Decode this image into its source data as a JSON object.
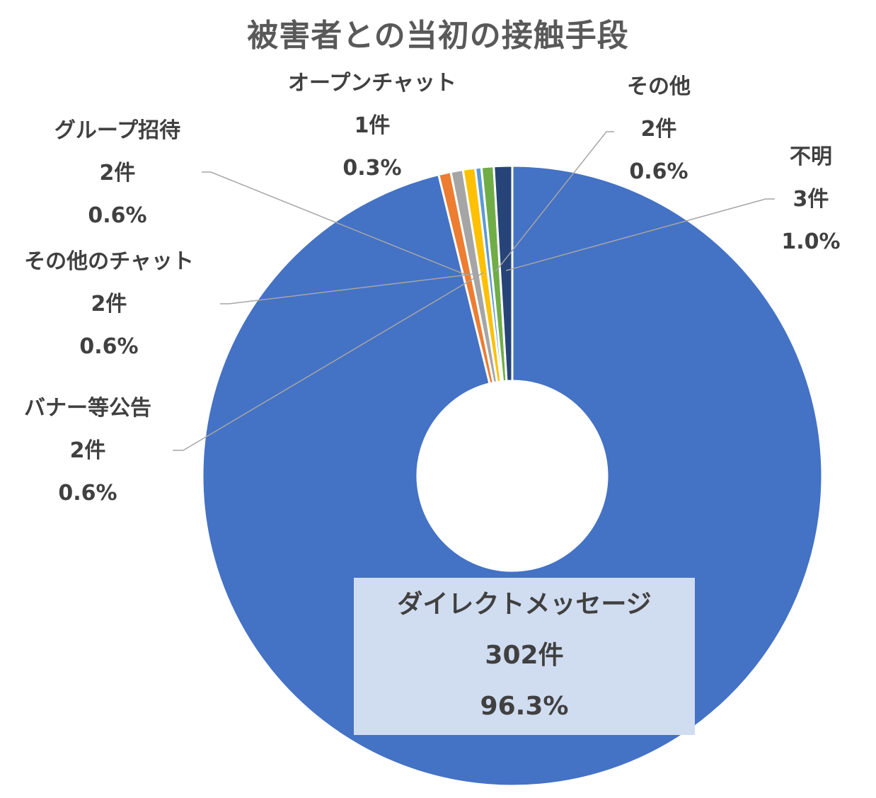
{
  "chart_data": {
    "type": "pie",
    "variant": "doughnut",
    "title": "被害者との当初の接触手段",
    "start": "12 o'clock, clockwise",
    "slices": [
      {
        "label": "ダイレクトメッセージ",
        "count": 302,
        "count_text": "302件",
        "percent_text": "96.3%",
        "color": "#4472c4"
      },
      {
        "label": "グループ招待",
        "count": 2,
        "count_text": "2件",
        "percent_text": "0.6%",
        "color": "#ed7d31"
      },
      {
        "label": "その他のチャット",
        "count": 2,
        "count_text": "2件",
        "percent_text": "0.6%",
        "color": "#a5a5a5"
      },
      {
        "label": "バナー等公告",
        "count": 2,
        "count_text": "2件",
        "percent_text": "0.6%",
        "color": "#ffc000"
      },
      {
        "label": "オープンチャット",
        "count": 1,
        "count_text": "1件",
        "percent_text": "0.3%",
        "color": "#5b9bd5"
      },
      {
        "label": "その他",
        "count": 2,
        "count_text": "2件",
        "percent_text": "0.6%",
        "color": "#70ad47"
      },
      {
        "label": "不明",
        "count": 3,
        "count_text": "3件",
        "percent_text": "1.0%",
        "color": "#264478"
      }
    ],
    "label_style": {
      "text_color": "#404040",
      "title_color": "#595959",
      "leader_line_color": "#a6a6a6",
      "highlight_box_color": "#d0dcf0"
    }
  }
}
